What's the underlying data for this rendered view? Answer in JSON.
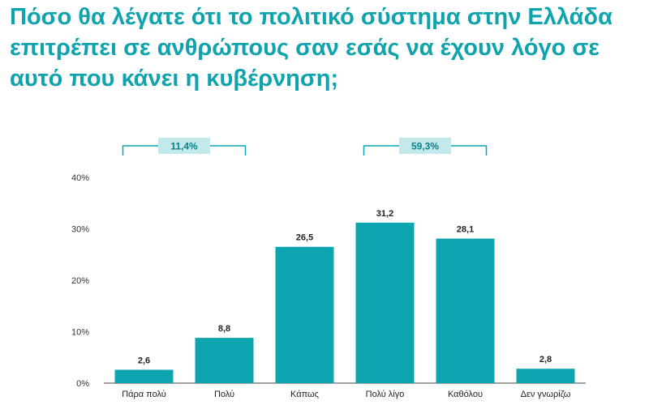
{
  "title": "Πόσο θα λέγατε ότι το πολιτικό σύστημα στην Ελλάδα επιτρέπει σε ανθρώπους σαν εσάς να έχουν λόγο σε αυτό που κάνει η κυβέρνηση;",
  "colors": {
    "title": "#0fa3ad",
    "bar": "#0ca5b0",
    "group_box": "#c4e9ec",
    "bracket": "#0ca5b0"
  },
  "chart_data": {
    "type": "bar",
    "title": "Πόσο θα λέγατε ότι το πολιτικό σύστημα στην Ελλάδα επιτρέπει σε ανθρώπους σαν εσάς να έχουν λόγο σε αυτό που κάνει η κυβέρνηση;",
    "categories": [
      "Πάρα πολύ",
      "Πολύ",
      "Κάπως",
      "Πολύ λίγο",
      "Καθόλου",
      "Δεν γνωρίζω"
    ],
    "values": [
      2.6,
      8.8,
      26.5,
      31.2,
      28.1,
      2.8
    ],
    "value_labels": [
      "2,6",
      "8,8",
      "26,5",
      "31,2",
      "28,1",
      "2,8"
    ],
    "xlabel": "",
    "ylabel": "",
    "ylim": [
      0,
      40
    ],
    "yticks": [
      0,
      10,
      20,
      30,
      40
    ],
    "ytick_labels": [
      "0%",
      "10%",
      "20%",
      "30%",
      "40%"
    ],
    "grid": false,
    "legend": "none",
    "group_annotations": [
      {
        "label": "11,4%",
        "value": 11.4,
        "spans": [
          "Πάρα πολύ",
          "Πολύ"
        ]
      },
      {
        "label": "59,3%",
        "value": 59.3,
        "spans": [
          "Πολύ λίγο",
          "Καθόλου"
        ]
      }
    ]
  }
}
